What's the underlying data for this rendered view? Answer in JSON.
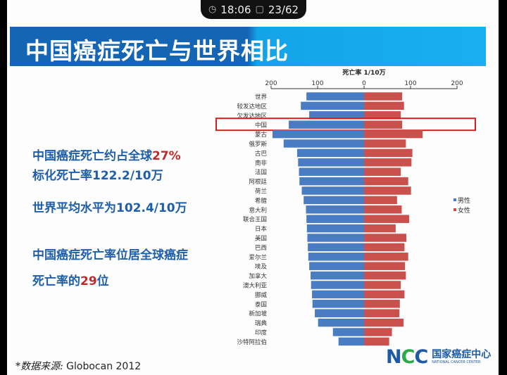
{
  "status_bar": {
    "clock_icon": "clock-icon",
    "time": "18:06",
    "page_icon": "page-icon",
    "page": "23/62"
  },
  "slide": {
    "title": "中国癌症死亡与世界相比",
    "lines": [
      {
        "pre": "中国癌症死亡约占全球",
        "hl": "27%",
        "post": ""
      },
      {
        "pre": "标化死亡率122.2/10万",
        "hl": "",
        "post": ""
      },
      {
        "pre": "世界平均水平为102.4/10万",
        "hl": "",
        "post": ""
      },
      {
        "pre": "中国癌症死亡率位居全球癌症",
        "hl": "",
        "post": ""
      },
      {
        "pre": "死亡率的",
        "hl": "29",
        "post": "位"
      }
    ],
    "footnote_label": "*数据来源:",
    "footnote_source": "Globocan 2012",
    "logo": {
      "mark": "NCC",
      "cn": "国家癌症中心",
      "en": "NATIONAL CANCER CENTER"
    }
  },
  "colors": {
    "male": "#4a7cc4",
    "female": "#c9504c",
    "highlight": "#d42020",
    "title_dark": "#1565b5",
    "title_light": "#19b0ef"
  },
  "chart_data": {
    "type": "bar",
    "orientation": "horizontal-butterfly",
    "title": "死亡率 1/10万",
    "xlim": [
      -200,
      200
    ],
    "tick_labels": [
      "200",
      "100",
      "0",
      "100",
      "200"
    ],
    "ticks": [
      -200,
      -100,
      0,
      100,
      200
    ],
    "highlighted_category": "中国",
    "legend_position": "right",
    "categories": [
      "世界",
      "较发达地区",
      "欠发达地区",
      "中国",
      "蒙古",
      "俄罗斯",
      "古巴",
      "南非",
      "法国",
      "阿根廷",
      "荷兰",
      "希腊",
      "意大利",
      "联合王国",
      "日本",
      "美国",
      "巴西",
      "爱尔兰",
      "埃及",
      "加拿大",
      "澳大利亚",
      "挪威",
      "泰国",
      "新加坡",
      "瑞典",
      "印度",
      "沙特阿拉伯"
    ],
    "series": [
      {
        "name": "男性",
        "values": [
          124,
          136,
          118,
          162,
          197,
          173,
          144,
          142,
          140,
          139,
          134,
          130,
          125,
          124,
          123,
          122,
          121,
          120,
          118,
          115,
          114,
          112,
          111,
          106,
          99,
          67,
          55
        ]
      },
      {
        "name": "女性",
        "values": [
          82,
          86,
          79,
          82,
          126,
          90,
          104,
          102,
          79,
          95,
          101,
          71,
          81,
          97,
          68,
          91,
          87,
          95,
          88,
          90,
          79,
          87,
          77,
          76,
          85,
          60,
          54
        ]
      }
    ]
  }
}
